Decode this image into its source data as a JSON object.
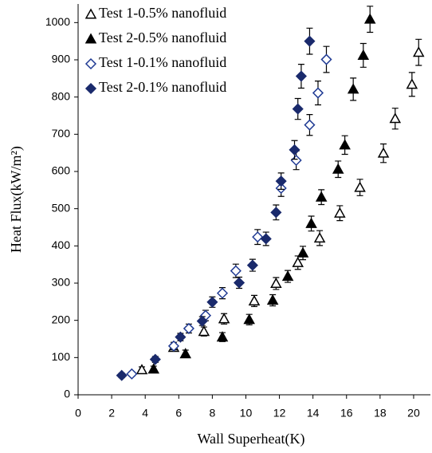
{
  "chart_data": {
    "type": "scatter",
    "x_label": "Wall Superheat(K)",
    "y_label": "Heat Flux(kW/m²)",
    "xlim": [
      0,
      21
    ],
    "ylim": [
      0,
      1050
    ],
    "xticks": [
      0,
      2,
      4,
      6,
      8,
      10,
      12,
      14,
      16,
      18,
      20
    ],
    "yticks": [
      0,
      100,
      200,
      300,
      400,
      500,
      600,
      700,
      800,
      900,
      1000
    ],
    "grid": false,
    "legend": "top-left",
    "series": [
      {
        "name": "Test 1-0.5% nanofluid",
        "color": "#000000",
        "marker": "triangle",
        "filled": false,
        "x": [
          3.8,
          5.7,
          7.5,
          8.7,
          10.5,
          11.8,
          13.1,
          14.4,
          15.6,
          16.8,
          18.2,
          18.9,
          19.9,
          20.3
        ],
        "values": [
          67,
          127,
          170,
          204,
          252,
          299,
          355,
          421,
          488,
          557,
          649,
          742,
          834,
          920
        ],
        "errors": [
          8,
          10,
          12,
          14,
          15,
          16,
          18,
          20,
          20,
          22,
          25,
          28,
          32,
          35
        ]
      },
      {
        "name": "Test 2-0.5% nanofluid",
        "color": "#000000",
        "marker": "triangle",
        "filled": true,
        "x": [
          4.5,
          6.4,
          8.6,
          10.2,
          11.6,
          12.5,
          13.4,
          13.9,
          14.5,
          15.5,
          15.9,
          16.4,
          17.0,
          17.4
        ],
        "values": [
          69,
          110,
          155,
          202,
          254,
          318,
          381,
          460,
          531,
          606,
          671,
          821,
          912,
          1009
        ],
        "errors": [
          8,
          10,
          12,
          14,
          15,
          16,
          18,
          20,
          20,
          22,
          25,
          30,
          32,
          35
        ]
      },
      {
        "name": "Test 1-0.1% nanofluid",
        "color": "#1f3a93",
        "marker": "diamond",
        "filled": false,
        "x": [
          3.2,
          5.7,
          6.6,
          7.6,
          8.6,
          9.4,
          10.7,
          12.1,
          13.0,
          13.8,
          14.3,
          14.8
        ],
        "values": [
          56,
          131,
          178,
          213,
          273,
          333,
          424,
          555,
          630,
          725,
          811,
          901
        ],
        "errors": [
          6,
          10,
          12,
          14,
          15,
          18,
          20,
          22,
          25,
          28,
          32,
          35
        ]
      },
      {
        "name": "Test 2-0.1% nanofluid",
        "color": "#1a2a6c",
        "marker": "diamond",
        "filled": true,
        "x": [
          2.6,
          4.6,
          6.1,
          7.4,
          8.0,
          9.6,
          10.4,
          11.2,
          11.8,
          12.1,
          12.9,
          13.1,
          13.3,
          13.8
        ],
        "values": [
          52,
          95,
          155,
          198,
          249,
          301,
          348,
          419,
          490,
          574,
          658,
          768,
          856,
          950
        ],
        "errors": [
          6,
          8,
          10,
          12,
          14,
          15,
          16,
          18,
          20,
          22,
          25,
          28,
          32,
          35
        ]
      }
    ]
  }
}
